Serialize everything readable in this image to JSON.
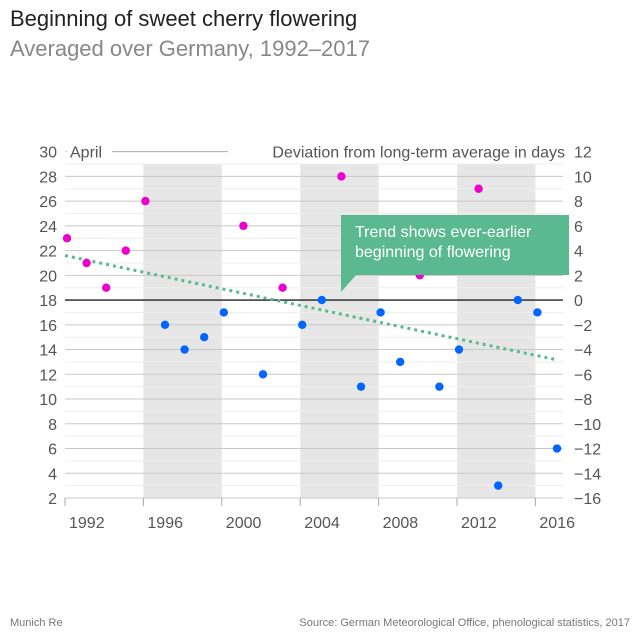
{
  "header": {
    "title": "Beginning of sweet cherry flowering",
    "subtitle": "Averaged over Germany, 1992–2017"
  },
  "footer": {
    "brand": "Munich Re",
    "source": "Source: German Meteorological Office, phenological statistics, 2017"
  },
  "annotation": {
    "line1": "Trend shows ever-earlier",
    "line2": "beginning of flowering"
  },
  "colors": {
    "later": "#ee00cc",
    "earlier": "#0066ff",
    "trend": "#5bb98f",
    "band": "#e6e6e6"
  },
  "chart_data": {
    "type": "scatter",
    "title": "Beginning of sweet cherry flowering",
    "subtitle": "Averaged over Germany, 1992–2017",
    "ylabel_left": "April",
    "ylabel_right": "Deviation from long-term average in days",
    "x": [
      1992,
      1993,
      1994,
      1995,
      1996,
      1997,
      1998,
      1999,
      2000,
      2001,
      2002,
      2003,
      2004,
      2005,
      2006,
      2007,
      2008,
      2009,
      2010,
      2011,
      2012,
      2013,
      2014,
      2015,
      2016,
      2017
    ],
    "y": [
      23,
      21,
      19,
      22,
      26,
      16,
      14,
      15,
      17,
      24,
      12,
      19,
      16,
      18,
      28,
      11,
      17,
      13,
      20,
      11,
      14,
      27,
      3,
      18,
      17,
      6
    ],
    "long_term_average": 18,
    "trend": {
      "start": [
        1992,
        21.6
      ],
      "end": [
        2017,
        13.2
      ]
    },
    "shaded_periods": [
      [
        1996,
        2000
      ],
      [
        2004,
        2008
      ],
      [
        2012,
        2016
      ]
    ],
    "xlim": [
      1992,
      2017
    ],
    "ylim_left": [
      2,
      30
    ],
    "ylim_right": [
      -16,
      12
    ],
    "xticks": [
      "1992",
      "1996",
      "2000",
      "2004",
      "2008",
      "2012",
      "2016"
    ],
    "yticks_left": [
      "2",
      "4",
      "6",
      "8",
      "10",
      "12",
      "14",
      "16",
      "18",
      "20",
      "22",
      "24",
      "26",
      "28",
      "30"
    ],
    "yticks_right": [
      "−16",
      "−14",
      "−12",
      "−10",
      "−8",
      "−6",
      "−4",
      "−2",
      "0",
      "2",
      "4",
      "6",
      "8",
      "10",
      "12"
    ],
    "grid": true
  }
}
